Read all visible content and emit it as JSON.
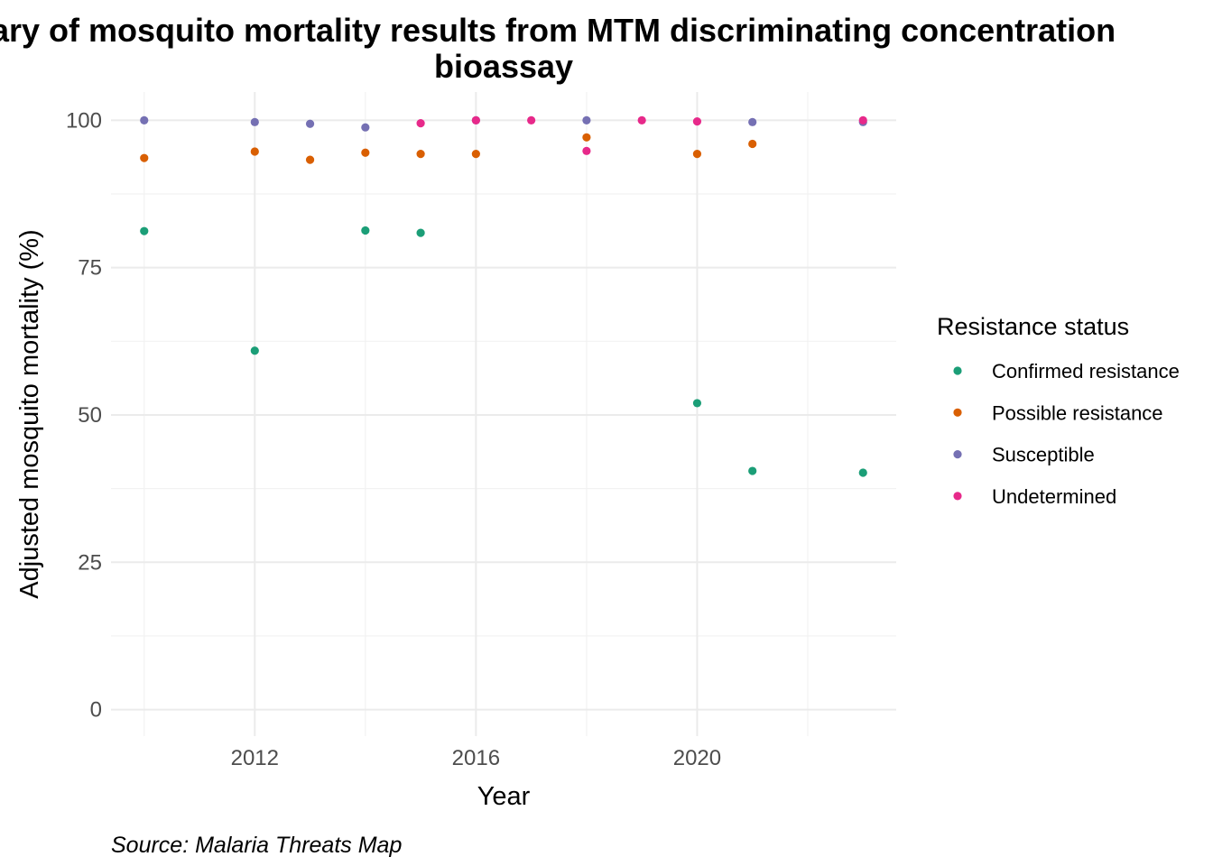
{
  "chart_data": {
    "type": "scatter",
    "title_lines": [
      "Summary of mosquito mortality results from MTM discriminating concentration",
      "bioassay"
    ],
    "xlabel": "Year",
    "ylabel": "Adjusted mosquito mortality (%)",
    "caption": "Source: Malaria Threats Map",
    "xlim": [
      2009.4,
      2023.6
    ],
    "ylim": [
      -4.5,
      104.8
    ],
    "x_ticks": [
      2012,
      2016,
      2020
    ],
    "x_tick_labels": [
      "2012",
      "2016",
      "2020"
    ],
    "x_minor_ticks": [
      2010,
      2014,
      2018,
      2022
    ],
    "y_ticks": [
      0,
      25,
      50,
      75,
      100
    ],
    "y_tick_labels": [
      "0",
      "25",
      "50",
      "75",
      "100"
    ],
    "y_minor_ticks": [
      12.5,
      37.5,
      62.5,
      87.5
    ],
    "grid": true,
    "legend": {
      "title": "Resistance status",
      "position": "right"
    },
    "series": [
      {
        "name": "Confirmed resistance",
        "color": "#1b9e77",
        "points": [
          {
            "x": 2010,
            "y": 81.2
          },
          {
            "x": 2012,
            "y": 60.9
          },
          {
            "x": 2014,
            "y": 81.3
          },
          {
            "x": 2015,
            "y": 80.9
          },
          {
            "x": 2020,
            "y": 52.0
          },
          {
            "x": 2021,
            "y": 40.5
          },
          {
            "x": 2023,
            "y": 40.2
          }
        ]
      },
      {
        "name": "Possible resistance",
        "color": "#d95f02",
        "points": [
          {
            "x": 2010,
            "y": 93.6
          },
          {
            "x": 2012,
            "y": 94.7
          },
          {
            "x": 2013,
            "y": 93.3
          },
          {
            "x": 2014,
            "y": 94.5
          },
          {
            "x": 2015,
            "y": 94.3
          },
          {
            "x": 2016,
            "y": 94.3
          },
          {
            "x": 2018,
            "y": 97.1
          },
          {
            "x": 2020,
            "y": 94.3
          },
          {
            "x": 2021,
            "y": 96.0
          }
        ]
      },
      {
        "name": "Susceptible",
        "color": "#7570b3",
        "points": [
          {
            "x": 2010,
            "y": 100.0
          },
          {
            "x": 2012,
            "y": 99.7
          },
          {
            "x": 2013,
            "y": 99.4
          },
          {
            "x": 2014,
            "y": 98.8
          },
          {
            "x": 2016,
            "y": 100.0
          },
          {
            "x": 2018,
            "y": 100.0
          },
          {
            "x": 2021,
            "y": 99.7
          },
          {
            "x": 2023,
            "y": 99.7
          }
        ]
      },
      {
        "name": "Undetermined",
        "color": "#e7298a",
        "points": [
          {
            "x": 2015,
            "y": 99.5
          },
          {
            "x": 2016,
            "y": 100.0
          },
          {
            "x": 2017,
            "y": 100.0
          },
          {
            "x": 2018,
            "y": 94.8
          },
          {
            "x": 2019,
            "y": 100.0
          },
          {
            "x": 2020,
            "y": 99.8
          },
          {
            "x": 2023,
            "y": 100.0
          }
        ]
      }
    ]
  }
}
